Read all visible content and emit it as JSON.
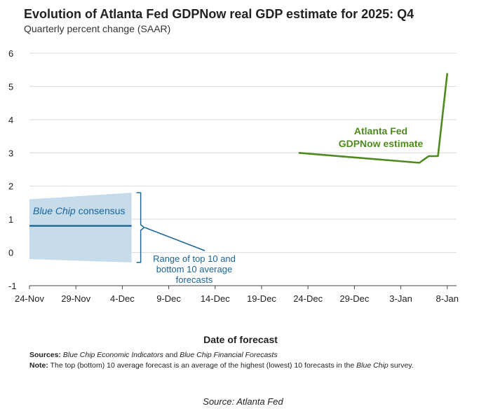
{
  "header": {
    "title": "Evolution of Atlanta Fed GDPNow real GDP estimate for 2025: Q4",
    "subtitle": "Quarterly percent change (SAAR)"
  },
  "chart_data": {
    "type": "line",
    "title": "Evolution of Atlanta Fed GDPNow real GDP estimate for 2025: Q4",
    "subtitle": "Quarterly percent change (SAAR)",
    "xlabel": "Date of forecast",
    "ylabel": "",
    "x_ticks": [
      "24-Nov",
      "29-Nov",
      "4-Dec",
      "9-Dec",
      "14-Dec",
      "19-Dec",
      "24-Dec",
      "29-Dec",
      "3-Jan",
      "8-Jan"
    ],
    "y_ticks": [
      -1,
      0,
      1,
      2,
      3,
      4,
      5,
      6
    ],
    "ylim": [
      -1,
      6
    ],
    "xlim": [
      "2025-11-24",
      "2026-01-09"
    ],
    "grid": true,
    "series": [
      {
        "name": "Atlanta Fed GDPNow estimate",
        "color": "#4f8a1f",
        "points": [
          {
            "x": "2025-12-23",
            "y": 3.0
          },
          {
            "x": "2026-01-05",
            "y": 2.7
          },
          {
            "x": "2026-01-06",
            "y": 2.9
          },
          {
            "x": "2026-01-07",
            "y": 2.9
          },
          {
            "x": "2026-01-08",
            "y": 5.4
          }
        ]
      },
      {
        "name": "Blue Chip consensus",
        "color": "#1a6496",
        "points": [
          {
            "x": "2025-11-24",
            "y": 0.8
          },
          {
            "x": "2025-12-05",
            "y": 0.8
          }
        ]
      }
    ],
    "band": {
      "name": "Range of top 10 and bottom 10 average forecasts",
      "color": "#c6dcea",
      "start": "2025-11-24",
      "end": "2025-12-05",
      "upper": [
        1.6,
        1.8
      ],
      "lower": [
        -0.2,
        -0.3
      ]
    },
    "annotations": {
      "gdpnow_label": [
        "Atlanta Fed",
        "GDPNow estimate"
      ],
      "bluechip_label_italic": "Blue Chip",
      "bluechip_label_rest": " consensus",
      "range_label": [
        "Range of top 10 and",
        "bottom 10 average",
        "forecasts"
      ]
    }
  },
  "notes": {
    "sources_label": "Sources:",
    "sources_text_1": "Blue Chip Economic Indicators",
    "sources_text_2": " and ",
    "sources_text_3": "Blue Chip Financial Forecasts",
    "note_label": "Note:",
    "note_text_1": " The top (bottom) 10 average forecast is an average of the highest (lowest) 10 forecasts in the ",
    "note_text_2": "Blue Chip",
    "note_text_3": " survey."
  },
  "source_line": "Source: Atlanta Fed"
}
